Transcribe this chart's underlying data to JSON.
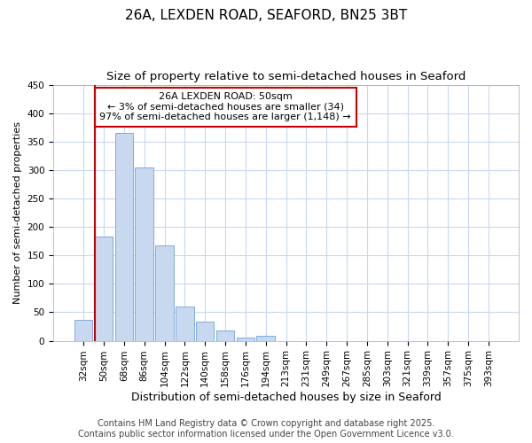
{
  "title": "26A, LEXDEN ROAD, SEAFORD, BN25 3BT",
  "subtitle": "Size of property relative to semi-detached houses in Seaford",
  "xlabel": "Distribution of semi-detached houses by size in Seaford",
  "ylabel": "Number of semi-detached properties",
  "categories": [
    "32sqm",
    "50sqm",
    "68sqm",
    "86sqm",
    "104sqm",
    "122sqm",
    "140sqm",
    "158sqm",
    "176sqm",
    "194sqm",
    "213sqm",
    "231sqm",
    "249sqm",
    "267sqm",
    "285sqm",
    "303sqm",
    "321sqm",
    "339sqm",
    "357sqm",
    "375sqm",
    "393sqm"
  ],
  "values": [
    37,
    183,
    365,
    305,
    167,
    60,
    33,
    18,
    5,
    8,
    0,
    0,
    0,
    0,
    0,
    0,
    0,
    0,
    0,
    0,
    0
  ],
  "bar_color": "#c8d8ee",
  "bar_edge_color": "#7aade0",
  "highlight_bar_index": 1,
  "highlight_line_color": "#cc0000",
  "annotation_text": "26A LEXDEN ROAD: 50sqm\n← 3% of semi-detached houses are smaller (34)\n97% of semi-detached houses are larger (1,148) →",
  "annotation_box_color": "#ffffff",
  "annotation_border_color": "#cc0000",
  "ylim": [
    0,
    450
  ],
  "yticks": [
    0,
    50,
    100,
    150,
    200,
    250,
    300,
    350,
    400,
    450
  ],
  "background_color": "#ffffff",
  "axes_background_color": "#ffffff",
  "grid_color": "#c8d8f0",
  "footer_line1": "Contains HM Land Registry data © Crown copyright and database right 2025.",
  "footer_line2": "Contains public sector information licensed under the Open Government Licence v3.0.",
  "title_fontsize": 11,
  "subtitle_fontsize": 9.5,
  "annotation_fontsize": 8,
  "footer_fontsize": 7,
  "tick_fontsize": 7.5,
  "ylabel_fontsize": 8,
  "xlabel_fontsize": 9
}
